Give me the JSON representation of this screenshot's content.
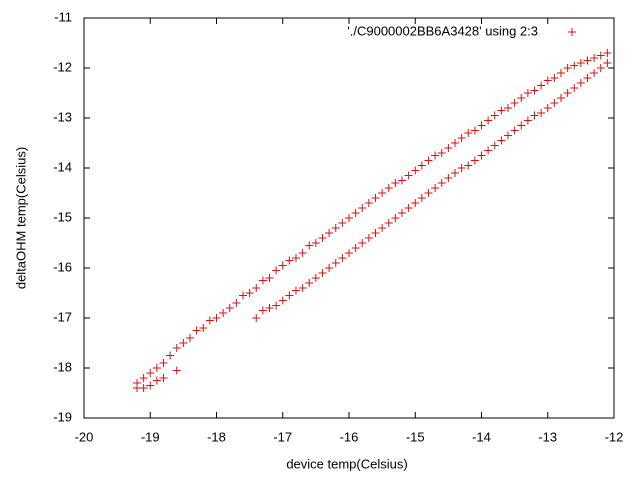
{
  "chart_data": {
    "type": "scatter",
    "xlabel": "device temp(Celsius)",
    "ylabel": "deltaOHM temp(Celsius)",
    "xlim": [
      -20,
      -12
    ],
    "xticks": [
      -20,
      -19,
      -18,
      -17,
      -16,
      -15,
      -14,
      -13,
      -12
    ],
    "ylim": [
      -19,
      -11
    ],
    "yticks": [
      -19,
      -18,
      -17,
      -16,
      -15,
      -14,
      -13,
      -12,
      -11
    ],
    "legend": "top-right",
    "x": [
      -19.2,
      -19.1,
      -19.0,
      -18.9,
      -18.8,
      -18.7,
      -18.6,
      -18.5,
      -18.4,
      -18.3,
      -18.2,
      -18.1,
      -18.0,
      -17.9,
      -17.8,
      -17.7,
      -17.6,
      -17.5,
      -17.4,
      -17.3,
      -17.2,
      -17.1,
      -17.0,
      -16.9,
      -16.8,
      -16.7,
      -16.6,
      -16.5,
      -16.4,
      -16.3,
      -16.2,
      -16.1,
      -16.0,
      -15.9,
      -15.8,
      -15.7,
      -15.6,
      -15.5,
      -15.4,
      -15.3,
      -15.2,
      -15.1,
      -15.0,
      -14.9,
      -14.8,
      -14.7,
      -14.6,
      -14.5,
      -14.4,
      -14.3,
      -14.2,
      -14.1,
      -14.0,
      -13.9,
      -13.8,
      -13.7,
      -13.6,
      -13.5,
      -13.4,
      -13.3,
      -13.2,
      -13.1,
      -13.0,
      -12.9,
      -12.8,
      -12.7,
      -12.6,
      -12.5,
      -12.4,
      -12.3,
      -12.2,
      -12.1,
      -19.2,
      -19.1,
      -19.0,
      -18.9,
      -18.8,
      -18.6,
      -17.4,
      -17.3,
      -17.2,
      -17.1,
      -17.0,
      -16.9,
      -16.8,
      -16.7,
      -16.6,
      -16.5,
      -16.4,
      -16.3,
      -16.2,
      -16.1,
      -16.0,
      -15.9,
      -15.8,
      -15.7,
      -15.6,
      -15.5,
      -15.4,
      -15.3,
      -15.2,
      -15.1,
      -15.0,
      -14.9,
      -14.8,
      -14.7,
      -14.6,
      -14.5,
      -14.4,
      -14.3,
      -14.2,
      -14.1,
      -14.0,
      -13.9,
      -13.8,
      -13.7,
      -13.6,
      -13.5,
      -13.4,
      -13.3,
      -13.2,
      -13.1,
      -13.0,
      -12.9,
      -12.8,
      -12.7,
      -12.6,
      -12.5,
      -12.4,
      -12.3,
      -12.2,
      -12.1
    ],
    "series": [
      {
        "name": "'./C9000002BB6A3428' using 2:3",
        "color": "#dd1111",
        "values": [
          -18.3,
          -18.2,
          -18.1,
          -18.0,
          -17.9,
          -17.75,
          -17.6,
          -17.5,
          -17.4,
          -17.25,
          -17.2,
          -17.05,
          -17.0,
          -16.9,
          -16.8,
          -16.7,
          -16.55,
          -16.5,
          -16.4,
          -16.25,
          -16.2,
          -16.05,
          -15.95,
          -15.85,
          -15.8,
          -15.7,
          -15.55,
          -15.5,
          -15.4,
          -15.3,
          -15.2,
          -15.1,
          -15.0,
          -14.9,
          -14.8,
          -14.7,
          -14.6,
          -14.5,
          -14.4,
          -14.3,
          -14.25,
          -14.15,
          -14.05,
          -13.95,
          -13.85,
          -13.75,
          -13.7,
          -13.6,
          -13.5,
          -13.4,
          -13.3,
          -13.25,
          -13.15,
          -13.05,
          -12.95,
          -12.85,
          -12.8,
          -12.7,
          -12.6,
          -12.5,
          -12.45,
          -12.35,
          -12.25,
          -12.2,
          -12.1,
          -12.0,
          -11.95,
          -11.9,
          -11.85,
          -11.8,
          -11.75,
          -11.7,
          -18.4,
          -18.4,
          -18.35,
          -18.25,
          -18.2,
          -18.05,
          -17.0,
          -16.85,
          -16.8,
          -16.75,
          -16.65,
          -16.55,
          -16.45,
          -16.4,
          -16.3,
          -16.2,
          -16.1,
          -16.0,
          -15.9,
          -15.8,
          -15.7,
          -15.6,
          -15.5,
          -15.4,
          -15.3,
          -15.2,
          -15.1,
          -15.0,
          -14.9,
          -14.8,
          -14.7,
          -14.6,
          -14.5,
          -14.4,
          -14.3,
          -14.2,
          -14.1,
          -14.0,
          -13.95,
          -13.85,
          -13.75,
          -13.65,
          -13.55,
          -13.45,
          -13.35,
          -13.25,
          -13.15,
          -13.05,
          -12.95,
          -12.9,
          -12.8,
          -12.7,
          -12.6,
          -12.5,
          -12.4,
          -12.3,
          -12.2,
          -12.1,
          -12.0,
          -11.9
        ]
      }
    ]
  }
}
